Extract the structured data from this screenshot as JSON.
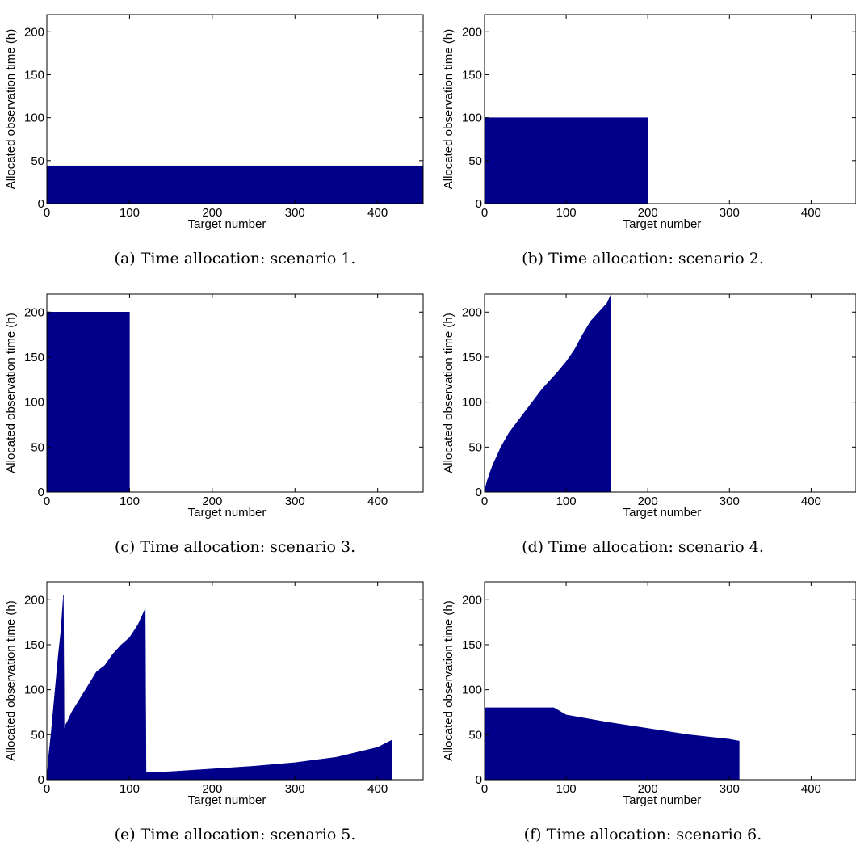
{
  "chart_data": [
    {
      "type": "area",
      "panel": "a",
      "caption": "(a) Time allocation: scenario 1.",
      "xlabel": "Target number",
      "ylabel": "Allocated observation time (h)",
      "xlim": [
        0,
        455
      ],
      "ylim": [
        0,
        220
      ],
      "xticks": [
        "0",
        "100",
        "200",
        "300",
        "400"
      ],
      "yticks": [
        "0",
        "50",
        "100",
        "150",
        "200"
      ],
      "color": "#00008B",
      "x": [
        0,
        455
      ],
      "y": [
        44,
        44
      ]
    },
    {
      "type": "area",
      "panel": "b",
      "caption": "(b) Time allocation: scenario 2.",
      "xlabel": "Target number",
      "ylabel": "Allocated observation time (h)",
      "xlim": [
        0,
        455
      ],
      "ylim": [
        0,
        220
      ],
      "xticks": [
        "0",
        "100",
        "200",
        "300",
        "400"
      ],
      "yticks": [
        "0",
        "50",
        "100",
        "150",
        "200"
      ],
      "color": "#00008B",
      "x": [
        0,
        200,
        200,
        455
      ],
      "y": [
        100,
        100,
        0,
        0
      ]
    },
    {
      "type": "area",
      "panel": "c",
      "caption": "(c) Time allocation: scenario 3.",
      "xlabel": "Target number",
      "ylabel": "Allocated observation time (h)",
      "xlim": [
        0,
        455
      ],
      "ylim": [
        0,
        220
      ],
      "xticks": [
        "0",
        "100",
        "200",
        "300",
        "400"
      ],
      "yticks": [
        "0",
        "50",
        "100",
        "150",
        "200"
      ],
      "color": "#00008B",
      "x": [
        0,
        100,
        100,
        455
      ],
      "y": [
        200,
        200,
        0,
        0
      ]
    },
    {
      "type": "area",
      "panel": "d",
      "caption": "(d) Time allocation: scenario 4.",
      "xlabel": "Target number",
      "ylabel": "Allocated observation time (h)",
      "xlim": [
        0,
        455
      ],
      "ylim": [
        0,
        220
      ],
      "xticks": [
        "0",
        "100",
        "200",
        "300",
        "400"
      ],
      "yticks": [
        "0",
        "50",
        "100",
        "150",
        "200"
      ],
      "color": "#00008B",
      "x": [
        0,
        1,
        3,
        6,
        10,
        15,
        20,
        25,
        30,
        40,
        50,
        60,
        70,
        80,
        90,
        100,
        110,
        120,
        130,
        140,
        150,
        155,
        155,
        455
      ],
      "y": [
        0,
        5,
        12,
        20,
        30,
        40,
        50,
        58,
        66,
        78,
        90,
        102,
        114,
        124,
        134,
        145,
        158,
        175,
        190,
        200,
        210,
        220,
        0,
        0
      ]
    },
    {
      "type": "area",
      "panel": "e",
      "caption": "(e) Time allocation: scenario 5.",
      "xlabel": "Target number",
      "ylabel": "Allocated observation time (h)",
      "xlim": [
        0,
        455
      ],
      "ylim": [
        0,
        220
      ],
      "xticks": [
        "0",
        "100",
        "200",
        "300",
        "400"
      ],
      "yticks": [
        "0",
        "50",
        "100",
        "150",
        "200"
      ],
      "color": "#00008B",
      "x": [
        0,
        2,
        5,
        8,
        11,
        14,
        17,
        20,
        21,
        22,
        25,
        30,
        40,
        50,
        60,
        70,
        80,
        90,
        100,
        110,
        119,
        120,
        150,
        200,
        250,
        300,
        350,
        400,
        417,
        417,
        455
      ],
      "y": [
        0,
        25,
        50,
        80,
        110,
        140,
        165,
        205,
        55,
        60,
        65,
        75,
        90,
        105,
        120,
        127,
        140,
        150,
        158,
        172,
        190,
        8,
        9,
        12,
        15,
        19,
        25,
        36,
        44,
        0,
        0
      ]
    },
    {
      "type": "area",
      "panel": "f",
      "caption": "(f) Time allocation: scenario 6.",
      "xlabel": "Target number",
      "ylabel": "Allocated observation time (h)",
      "xlim": [
        0,
        455
      ],
      "ylim": [
        0,
        220
      ],
      "xticks": [
        "0",
        "100",
        "200",
        "300",
        "400"
      ],
      "yticks": [
        "0",
        "50",
        "100",
        "150",
        "200"
      ],
      "color": "#00008B",
      "x": [
        0,
        85,
        100,
        150,
        200,
        250,
        300,
        312,
        312,
        455
      ],
      "y": [
        80,
        80,
        72,
        64,
        57,
        50,
        45,
        43,
        0,
        0
      ]
    }
  ]
}
